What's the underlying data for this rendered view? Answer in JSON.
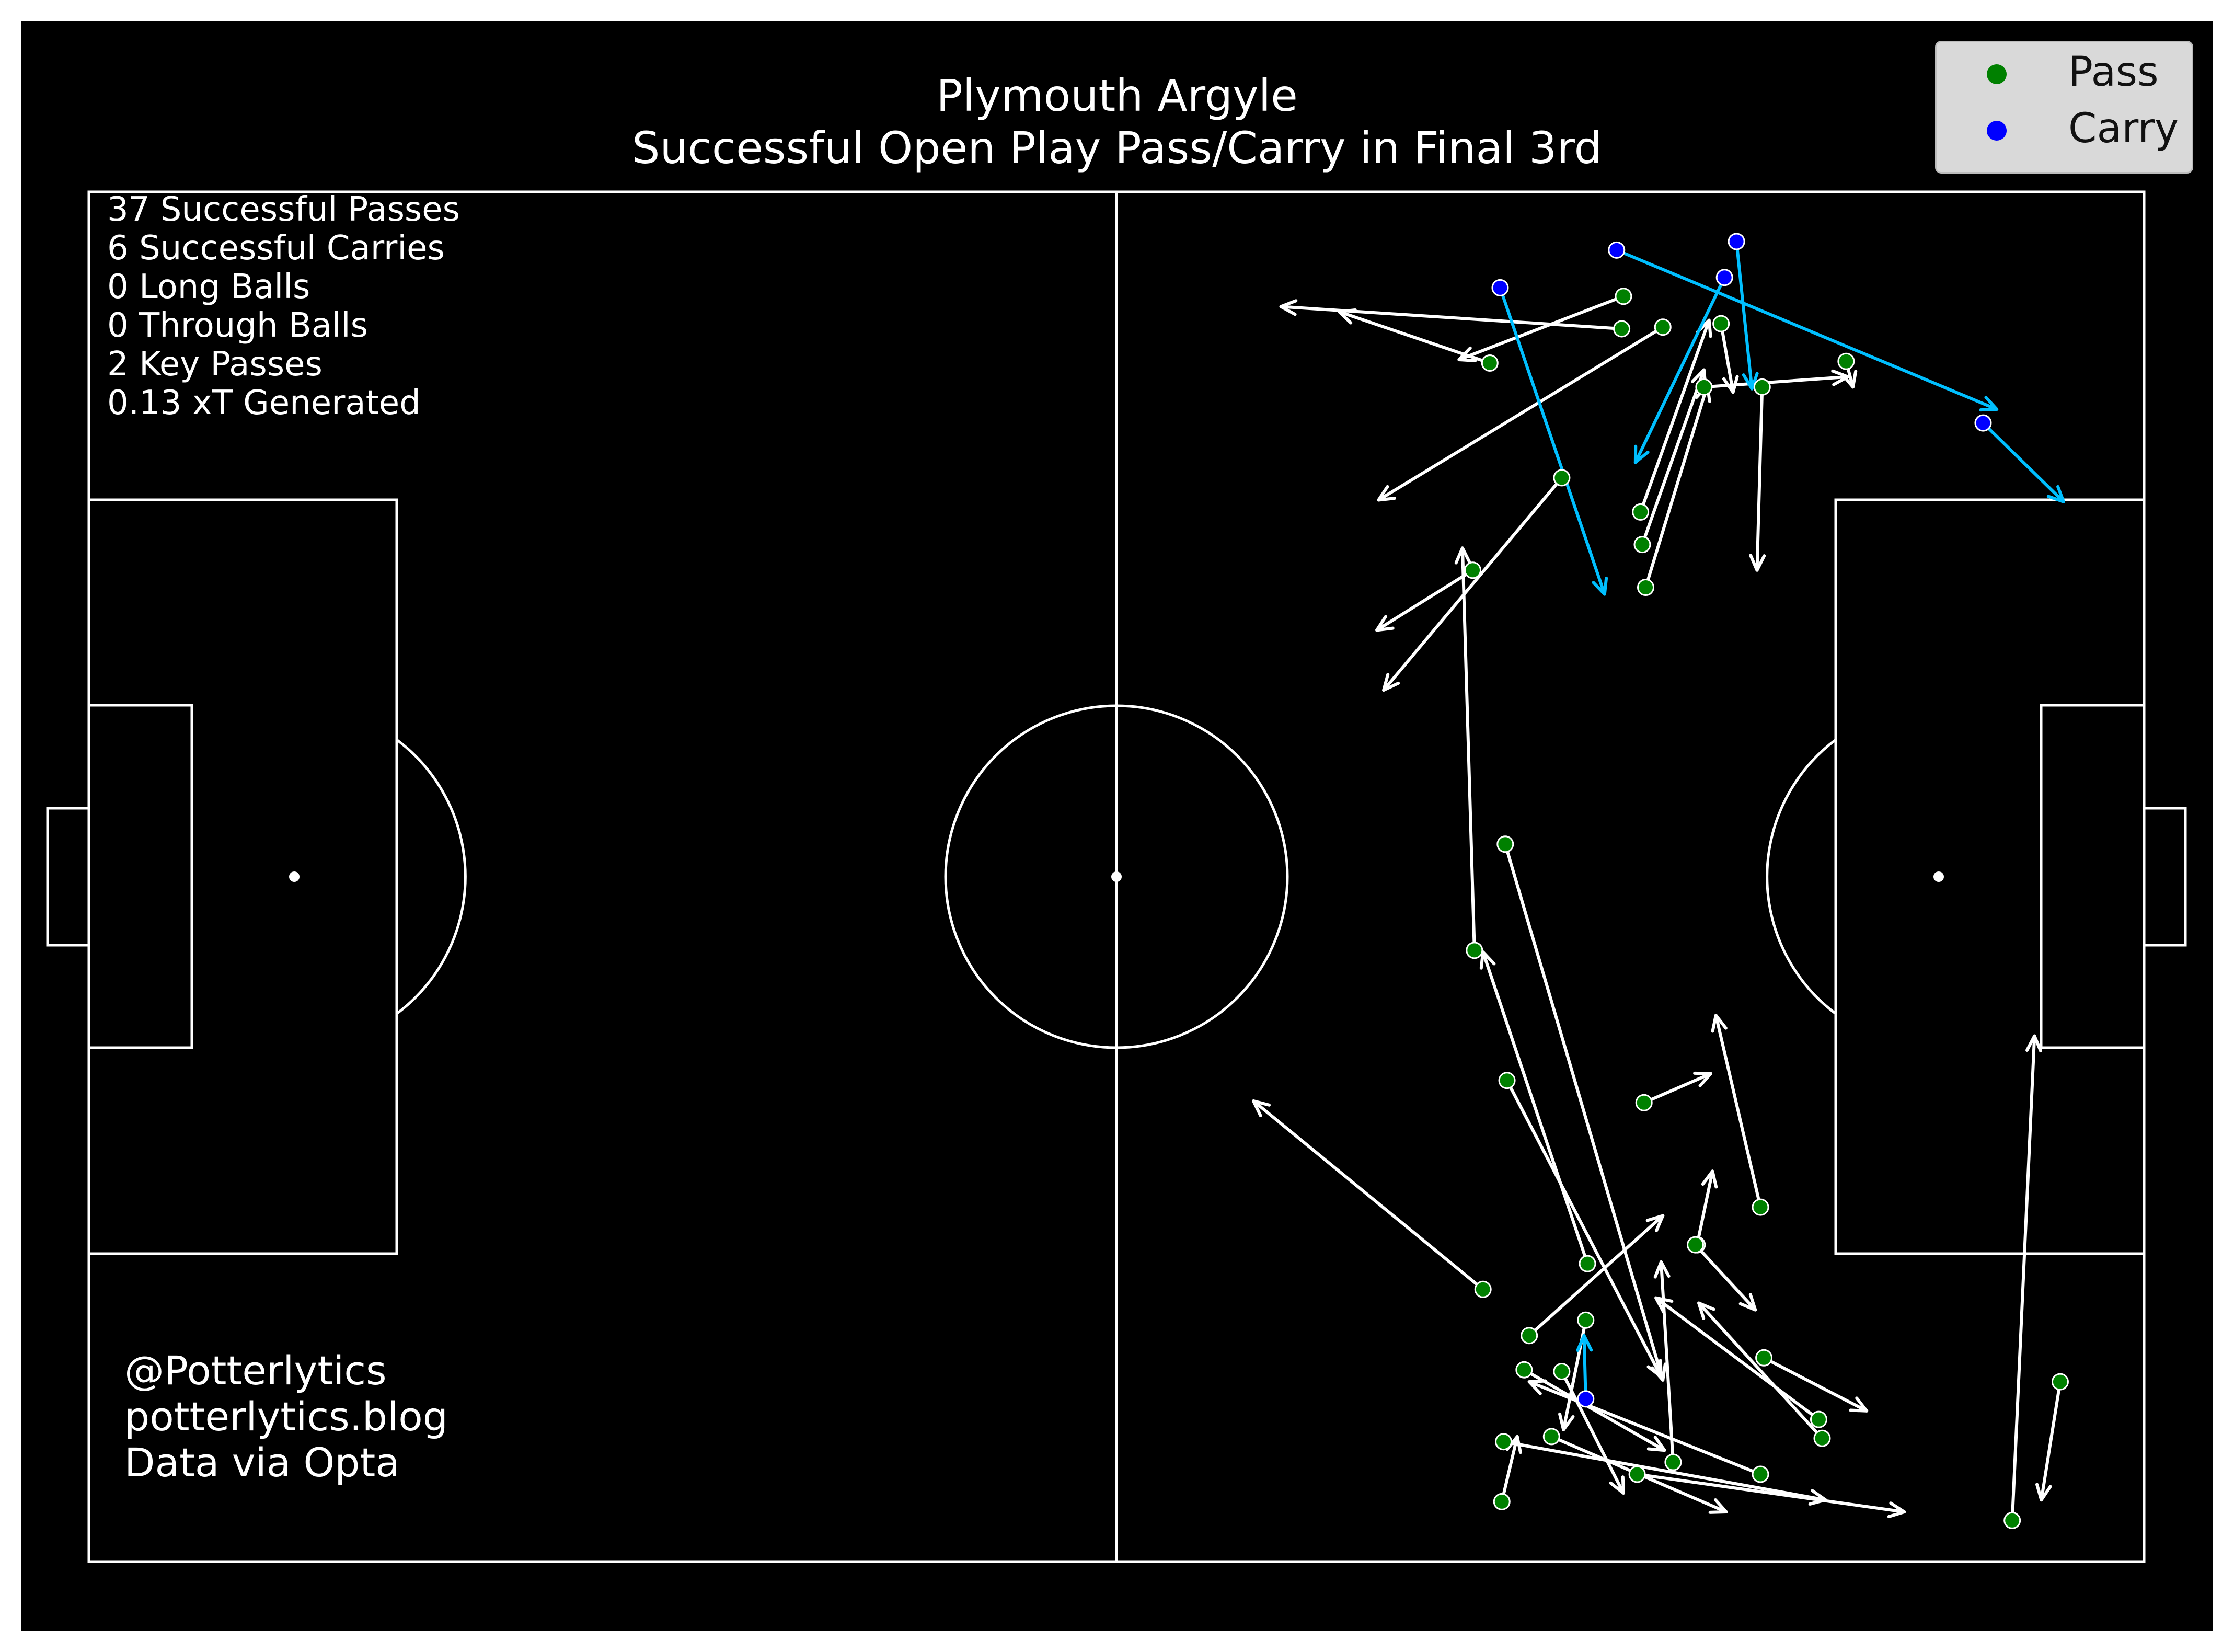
{
  "title": {
    "line1": "Plymouth Argyle",
    "line2": "Successful Open Play Pass/Carry in Final 3rd"
  },
  "stats": [
    "37 Successful Passes",
    "6 Successful Carries",
    "0 Long Balls",
    "0 Through Balls",
    "2 Key Passes",
    "0.13 xT Generated"
  ],
  "credits": [
    "@Potterlytics",
    "potterlytics.blog",
    "Data via Opta"
  ],
  "legend": [
    {
      "label": "Pass",
      "color": "#008000"
    },
    {
      "label": "Carry",
      "color": "#0000ff"
    }
  ],
  "colors": {
    "background": "#000000",
    "pitch_lines": "#ffffff",
    "pass_arrow": "#ffffff",
    "carry_arrow": "#00bfff",
    "pass_marker": "#008000",
    "carry_marker": "#0000ff"
  },
  "chart_data": {
    "type": "scatter",
    "pitch": {
      "length": 120,
      "width": 80,
      "units": "yards"
    },
    "series": [
      {
        "name": "Pass",
        "events": [
          {
            "start": [
              89.5,
              72.0
            ],
            "end": [
              69.6,
              73.3
            ]
          },
          {
            "start": [
              81.8,
              70.0
            ],
            "end": [
              73.0,
              73.0
            ]
          },
          {
            "start": [
              89.6,
              73.9
            ],
            "end": [
              80.0,
              70.2
            ]
          },
          {
            "start": [
              91.9,
              72.1
            ],
            "end": [
              75.3,
              62.0
            ]
          },
          {
            "start": [
              95.3,
              72.3
            ],
            "end": [
              96.0,
              68.3
            ]
          },
          {
            "start": [
              94.3,
              68.6
            ],
            "end": [
              102.7,
              69.2
            ]
          },
          {
            "start": [
              102.6,
              70.1
            ],
            "end": [
              103.0,
              68.6
            ]
          },
          {
            "start": [
              97.7,
              68.6
            ],
            "end": [
              97.4,
              57.9
            ]
          },
          {
            "start": [
              86.0,
              63.3
            ],
            "end": [
              75.6,
              50.9
            ]
          },
          {
            "start": [
              90.6,
              61.3
            ],
            "end": [
              94.6,
              72.5
            ]
          },
          {
            "start": [
              90.7,
              59.4
            ],
            "end": [
              94.3,
              69.6
            ]
          },
          {
            "start": [
              90.9,
              56.9
            ],
            "end": [
              94.5,
              68.7
            ]
          },
          {
            "start": [
              80.8,
              57.9
            ],
            "end": [
              75.2,
              54.4
            ]
          },
          {
            "start": [
              80.9,
              35.7
            ],
            "end": [
              80.2,
              59.2
            ]
          },
          {
            "start": [
              82.7,
              41.9
            ],
            "end": [
              91.9,
              10.6
            ]
          },
          {
            "start": [
              82.8,
              28.1
            ],
            "end": [
              91.8,
              10.8
            ]
          },
          {
            "start": [
              90.8,
              26.8
            ],
            "end": [
              94.7,
              28.5
            ]
          },
          {
            "start": [
              97.6,
              20.7
            ],
            "end": [
              95.0,
              31.9
            ]
          },
          {
            "start": [
              81.4,
              15.9
            ],
            "end": [
              68.0,
              26.9
            ]
          },
          {
            "start": [
              87.5,
              17.4
            ],
            "end": [
              81.4,
              35.6
            ]
          },
          {
            "start": [
              84.1,
              13.2
            ],
            "end": [
              91.9,
              20.2
            ]
          },
          {
            "start": [
              83.8,
              11.2
            ],
            "end": [
              92.0,
              6.5
            ]
          },
          {
            "start": [
              93.9,
              18.5
            ],
            "end": [
              94.8,
              22.8
            ]
          },
          {
            "start": [
              93.8,
              18.5
            ],
            "end": [
              97.3,
              14.7
            ]
          },
          {
            "start": [
              101.2,
              7.2
            ],
            "end": [
              94.0,
              15.1
            ]
          },
          {
            "start": [
              97.8,
              11.9
            ],
            "end": [
              103.8,
              8.8
            ]
          },
          {
            "start": [
              101.0,
              8.3
            ],
            "end": [
              91.5,
              15.4
            ]
          },
          {
            "start": [
              86.0,
              11.1
            ],
            "end": [
              89.6,
              4.0
            ]
          },
          {
            "start": [
              92.5,
              5.8
            ],
            "end": [
              91.8,
              17.5
            ]
          },
          {
            "start": [
              85.4,
              7.3
            ],
            "end": [
              95.6,
              2.9
            ]
          },
          {
            "start": [
              82.6,
              7.0
            ],
            "end": [
              101.4,
              3.6
            ]
          },
          {
            "start": [
              97.6,
              5.1
            ],
            "end": [
              84.1,
              10.5
            ]
          },
          {
            "start": [
              82.5,
              3.5
            ],
            "end": [
              83.4,
              7.3
            ]
          },
          {
            "start": [
              87.4,
              14.1
            ],
            "end": [
              86.1,
              7.7
            ]
          },
          {
            "start": [
              90.4,
              5.1
            ],
            "end": [
              106.0,
              2.9
            ]
          },
          {
            "start": [
              112.3,
              2.4
            ],
            "end": [
              113.6,
              30.7
            ]
          },
          {
            "start": [
              115.1,
              10.5
            ],
            "end": [
              114.0,
              3.6
            ]
          }
        ]
      },
      {
        "name": "Carry",
        "events": [
          {
            "start": [
              82.4,
              74.4
            ],
            "end": [
              88.5,
              56.5
            ]
          },
          {
            "start": [
              89.2,
              76.6
            ],
            "end": [
              111.4,
              67.3
            ]
          },
          {
            "start": [
              96.2,
              77.1
            ],
            "end": [
              97.1,
              68.5
            ]
          },
          {
            "start": [
              95.5,
              75.0
            ],
            "end": [
              90.3,
              64.2
            ]
          },
          {
            "start": [
              110.6,
              66.5
            ],
            "end": [
              115.3,
              61.9
            ]
          },
          {
            "start": [
              87.4,
              9.5
            ],
            "end": [
              87.3,
              13.2
            ]
          }
        ]
      }
    ],
    "xlim": [
      0,
      120
    ],
    "ylim": [
      0,
      80
    ],
    "grid": false,
    "legend_position": "top-right"
  }
}
